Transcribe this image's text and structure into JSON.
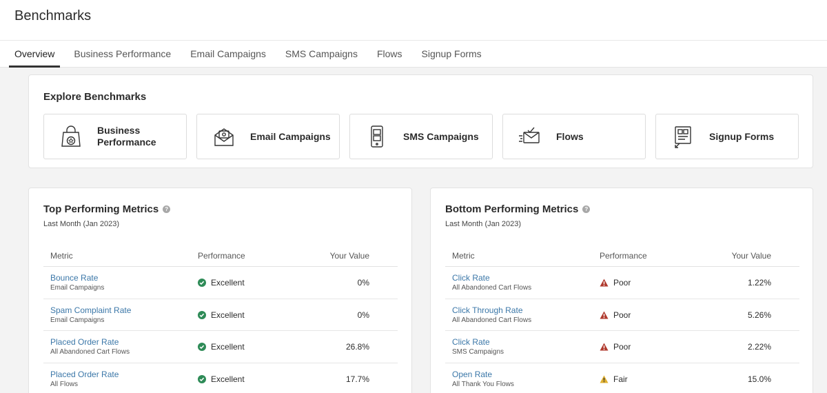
{
  "header": {
    "title": "Benchmarks",
    "tabs": [
      {
        "label": "Overview",
        "active": true
      },
      {
        "label": "Business Performance"
      },
      {
        "label": "Email Campaigns"
      },
      {
        "label": "SMS Campaigns"
      },
      {
        "label": "Flows"
      },
      {
        "label": "Signup Forms"
      }
    ]
  },
  "explore": {
    "title": "Explore Benchmarks",
    "tiles": [
      {
        "label": "Business Performance",
        "icon": "shopping-bag-star-icon"
      },
      {
        "label": "Email Campaigns",
        "icon": "email-envelope-icon"
      },
      {
        "label": "SMS Campaigns",
        "icon": "mobile-phone-icon"
      },
      {
        "label": "Flows",
        "icon": "flow-envelope-icon"
      },
      {
        "label": "Signup Forms",
        "icon": "signup-form-icon"
      }
    ]
  },
  "top_metrics": {
    "title": "Top Performing Metrics",
    "period": "Last Month (Jan 2023)",
    "columns": {
      "metric": "Metric",
      "performance": "Performance",
      "value": "Your Value"
    },
    "rows": [
      {
        "metric": "Bounce Rate",
        "source": "Email Campaigns",
        "performance": "Excellent",
        "value": "0%"
      },
      {
        "metric": "Spam Complaint Rate",
        "source": "Email Campaigns",
        "performance": "Excellent",
        "value": "0%"
      },
      {
        "metric": "Placed Order Rate",
        "source": "All Abandoned Cart Flows",
        "performance": "Excellent",
        "value": "26.8%"
      },
      {
        "metric": "Placed Order Rate",
        "source": "All Flows",
        "performance": "Excellent",
        "value": "17.7%"
      }
    ]
  },
  "bottom_metrics": {
    "title": "Bottom Performing Metrics",
    "period": "Last Month (Jan 2023)",
    "columns": {
      "metric": "Metric",
      "performance": "Performance",
      "value": "Your Value"
    },
    "rows": [
      {
        "metric": "Click Rate",
        "source": "All Abandoned Cart Flows",
        "performance": "Poor",
        "value": "1.22%"
      },
      {
        "metric": "Click Through Rate",
        "source": "All Abandoned Cart Flows",
        "performance": "Poor",
        "value": "5.26%"
      },
      {
        "metric": "Click Rate",
        "source": "SMS Campaigns",
        "performance": "Poor",
        "value": "2.22%"
      },
      {
        "metric": "Open Rate",
        "source": "All Thank You Flows",
        "performance": "Fair",
        "value": "15.0%"
      }
    ]
  },
  "colors": {
    "excellent": "#2e8b57",
    "poor": "#b03a2e",
    "fair": "#e0b030",
    "link": "#3b77a8"
  }
}
